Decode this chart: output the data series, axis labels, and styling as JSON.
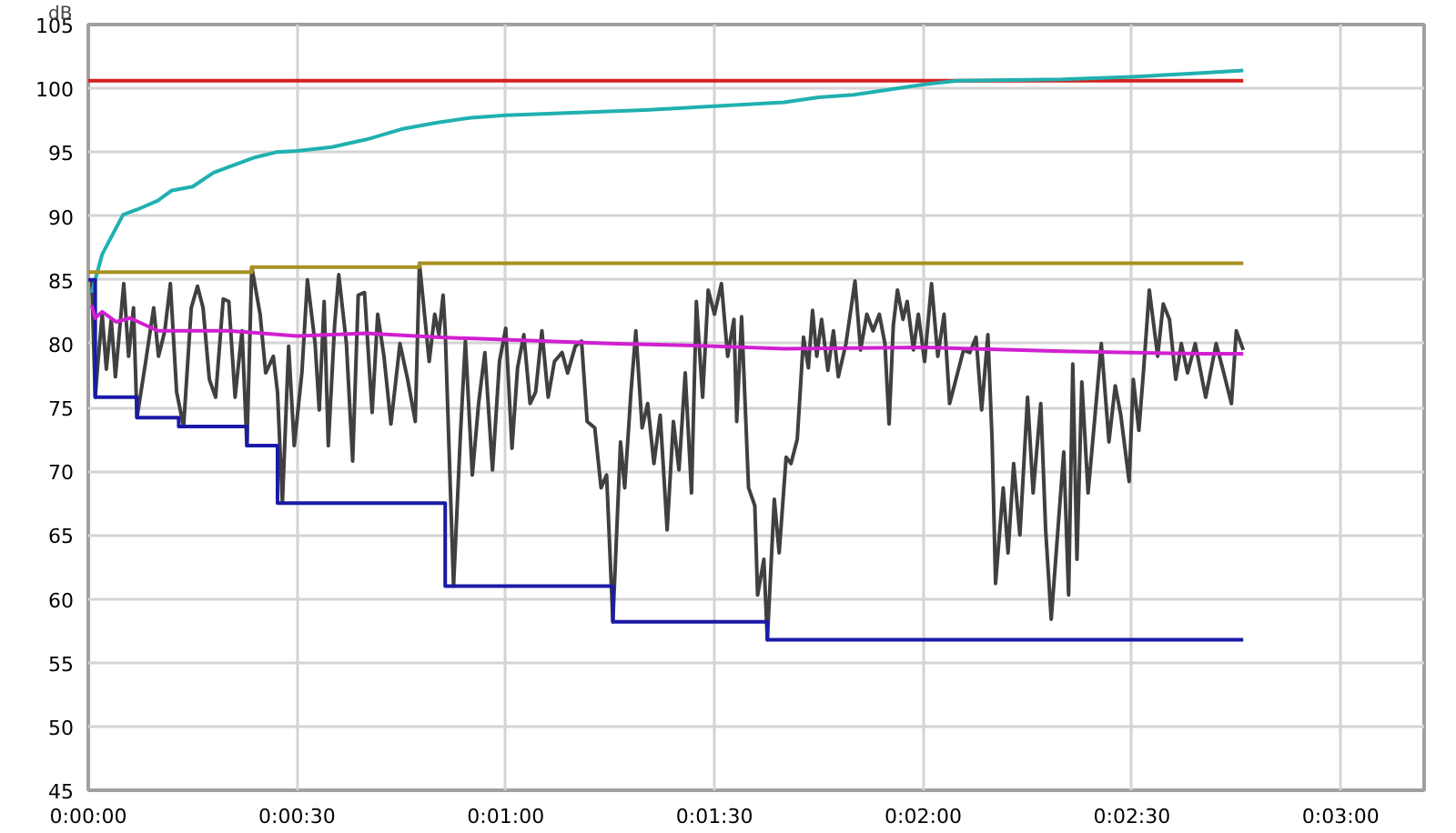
{
  "chart_data": {
    "type": "line",
    "ylabel": "dB",
    "xlim": [
      0,
      192
    ],
    "ylim": [
      45,
      105
    ],
    "xticks": [
      {
        "value": 0,
        "label": "0:00:00"
      },
      {
        "value": 30,
        "label": "0:00:30"
      },
      {
        "value": 60,
        "label": "0:01:00"
      },
      {
        "value": 90,
        "label": "0:01:30"
      },
      {
        "value": 120,
        "label": "0:02:00"
      },
      {
        "value": 150,
        "label": "0:02:30"
      },
      {
        "value": 180,
        "label": "0:03:00"
      }
    ],
    "yticks": [
      45,
      50,
      55,
      60,
      65,
      70,
      75,
      80,
      85,
      90,
      95,
      100,
      105
    ],
    "grid": true,
    "series": [
      {
        "color": "#404040",
        "x": [
          0.5,
          1.0,
          1.4,
          2.0,
          2.6,
          3.3,
          3.9,
          5.1,
          5.8,
          6.5,
          7.0,
          8.2,
          9.4,
          10.1,
          11.0,
          11.8,
          12.7,
          13.7,
          14.8,
          15.7,
          16.5,
          17.4,
          18.3,
          19.4,
          20.2,
          21.1,
          22.1,
          22.8,
          23.5,
          24.7,
          25.5,
          26.6,
          27.2,
          27.9,
          28.8,
          29.6,
          30.7,
          31.5,
          32.6,
          33.2,
          33.9,
          34.5,
          35.4,
          36.0,
          37.1,
          38.0,
          38.8,
          39.7,
          40.8,
          41.6,
          42.5,
          43.5,
          44.8,
          45.9,
          47.0,
          47.6,
          49.0,
          49.8,
          50.4,
          51.0,
          51.3,
          52.5,
          53.5,
          54.2,
          55.2,
          56.1,
          57.0,
          58.1,
          59.1,
          60.0,
          60.9,
          61.7,
          62.6,
          63.5,
          64.3,
          65.2,
          66.1,
          67.0,
          68.1,
          68.9,
          70.0,
          70.9,
          71.7,
          72.8,
          73.7,
          74.5,
          75.4,
          76.5,
          77.1,
          78.0,
          78.7,
          79.6,
          80.4,
          81.3,
          82.2,
          83.2,
          84.1,
          84.9,
          85.8,
          86.7,
          87.4,
          88.3,
          89.1,
          90.0,
          91.0,
          91.9,
          92.8,
          93.2,
          93.9,
          94.9,
          95.8,
          96.2,
          97.1,
          97.6,
          98.6,
          99.3,
          100.3,
          101.0,
          101.9,
          102.8,
          103.5,
          104.1,
          104.7,
          105.4,
          106.3,
          107.1,
          107.8,
          108.9,
          110.2,
          111.0,
          111.9,
          112.8,
          113.7,
          114.5,
          115.1,
          115.7,
          116.3,
          117.1,
          117.7,
          118.6,
          119.3,
          120.2,
          121.2,
          122.1,
          123.0,
          123.8,
          124.7,
          125.8,
          126.7,
          127.6,
          128.4,
          129.3,
          129.9,
          130.4,
          131.5,
          132.2,
          133.0,
          133.9,
          135.0,
          135.8,
          136.9,
          137.6,
          138.4,
          140.2,
          140.9,
          141.5,
          142.1,
          142.8,
          143.7,
          144.7,
          145.6,
          146.7,
          147.6,
          148.4,
          149.6,
          150.2,
          151.0,
          151.7,
          152.5,
          153.7,
          154.5,
          155.4,
          156.3,
          157.1,
          158.0,
          159.1,
          160.6,
          162.1,
          163.2,
          164.3,
          165.0,
          166.0
        ],
        "values": [
          85,
          75.8,
          78.6,
          82.3,
          78,
          81.9,
          77.4,
          84.7,
          79,
          82.8,
          74.2,
          78.4,
          82.8,
          79,
          81,
          84.7,
          76.2,
          73.5,
          82.8,
          84.5,
          82.8,
          77.2,
          75.8,
          83.5,
          83.3,
          75.8,
          81,
          72,
          86,
          82.3,
          77.7,
          79,
          76.2,
          67.5,
          79.8,
          72,
          77.7,
          85,
          80,
          74.8,
          83.3,
          72,
          81.4,
          85.4,
          80,
          70.8,
          83.8,
          84,
          74.6,
          82.3,
          79,
          73.7,
          80,
          77.2,
          73.9,
          86.3,
          78.6,
          82.3,
          80.7,
          83.8,
          81,
          61,
          73,
          80.2,
          69.7,
          75.3,
          79.3,
          70.1,
          78.6,
          81.2,
          71.8,
          78.1,
          80.7,
          75.3,
          76.2,
          81,
          75.8,
          78.6,
          79.3,
          77.7,
          79.8,
          80.2,
          73.9,
          73.4,
          68.7,
          69.7,
          58.2,
          72.3,
          68.7,
          76.2,
          81,
          73.4,
          75.3,
          70.6,
          74.4,
          65.4,
          73.9,
          70.1,
          77.7,
          68.3,
          83.3,
          75.8,
          84.2,
          82.3,
          84.7,
          79,
          81.9,
          73.9,
          82.1,
          68.7,
          67.3,
          60.3,
          63.1,
          56.8,
          67.8,
          63.6,
          71.1,
          70.6,
          72.5,
          80.5,
          78.1,
          82.6,
          79,
          81.9,
          77.9,
          81,
          77.4,
          80,
          84.9,
          79.5,
          82.3,
          81,
          82.3,
          80,
          73.7,
          81.4,
          84.2,
          81.9,
          83.3,
          79.5,
          82.3,
          78.6,
          84.7,
          79,
          82.3,
          75.3,
          77.2,
          79.5,
          79.3,
          80.5,
          74.8,
          80.7,
          72.5,
          61.2,
          68.7,
          63.6,
          70.6,
          65,
          75.8,
          68.3,
          75.3,
          65.4,
          58.4,
          71.5,
          60.3,
          78.4,
          63.1,
          77,
          68.3,
          74.4,
          80,
          72.3,
          76.7,
          74.4,
          69.2,
          77.2,
          73.2,
          78.1,
          84.2,
          79,
          83.1,
          81.9,
          77.2,
          80,
          77.7,
          80,
          75.8,
          80,
          77.7,
          75.3,
          81,
          79.5
        ]
      },
      {
        "color": "#d42020",
        "x": [
          0,
          166
        ],
        "values": [
          100.6,
          100.6
        ]
      },
      {
        "color": "#20b0b0",
        "x": [
          0.5,
          2,
          5,
          7,
          10,
          12,
          15,
          18,
          20,
          24,
          27,
          30,
          35,
          40,
          45,
          50,
          55,
          60,
          80,
          90,
          100,
          105,
          110,
          120,
          125,
          140,
          150,
          160,
          166
        ],
        "values": [
          84,
          87,
          90.1,
          90.5,
          91.2,
          92,
          92.3,
          93.4,
          93.8,
          94.6,
          95,
          95.1,
          95.4,
          96,
          96.8,
          97.3,
          97.7,
          97.9,
          98.3,
          98.6,
          98.9,
          99.3,
          99.5,
          100.3,
          100.6,
          100.7,
          100.9,
          101.2,
          101.4
        ]
      },
      {
        "type": "step",
        "color": "#a89020",
        "x": [
          0,
          23.5,
          47.6,
          166
        ],
        "values": [
          85.6,
          86,
          86.3,
          86.3
        ]
      },
      {
        "type": "step",
        "color": "#1a1aa8",
        "x": [
          0,
          1,
          7,
          13,
          22.8,
          27.2,
          51.3,
          75.4,
          97.6,
          166
        ],
        "values": [
          85,
          75.8,
          74.2,
          73.5,
          72,
          67.5,
          61,
          58.2,
          56.8,
          56.8
        ]
      },
      {
        "color": "#d020d0",
        "x": [
          0.5,
          1,
          2,
          4,
          6,
          8,
          10,
          15,
          20,
          25,
          30,
          40,
          50,
          60,
          75,
          90,
          100,
          120,
          140,
          160,
          166
        ],
        "values": [
          83,
          82,
          82.5,
          81.7,
          82,
          81.5,
          81,
          81,
          81,
          80.8,
          80.6,
          80.8,
          80.5,
          80.3,
          80,
          79.8,
          79.6,
          79.7,
          79.4,
          79.2,
          79.2
        ]
      }
    ]
  }
}
